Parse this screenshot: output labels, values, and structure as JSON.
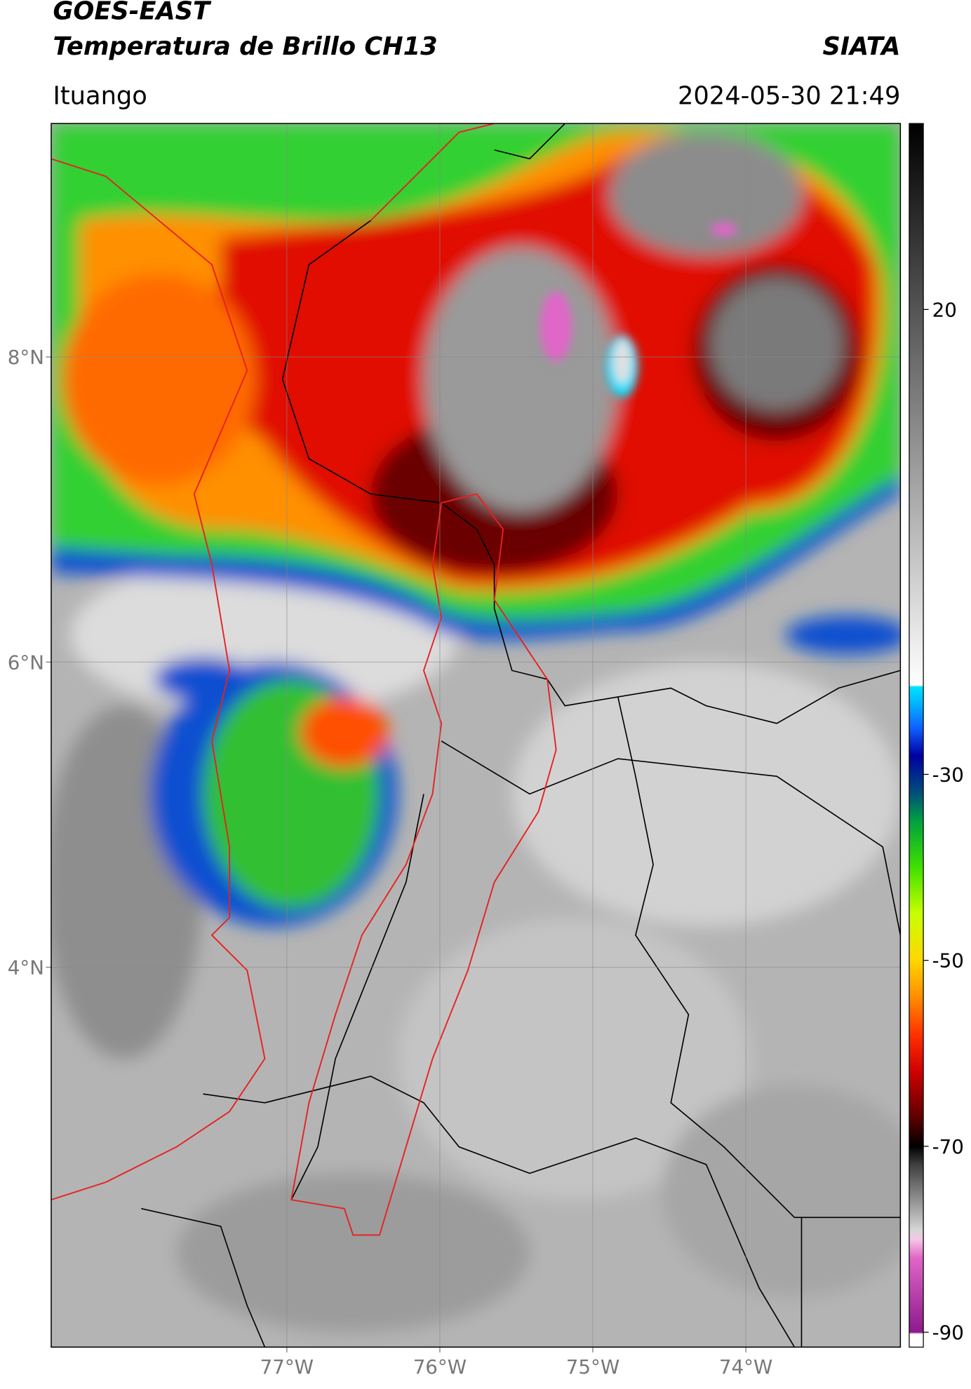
{
  "header": {
    "title_line1": "GOES-EAST",
    "title_line2": "Temperatura de Brillo CH13",
    "agency": "SIATA",
    "region": "Ituango",
    "datetime": "2024-05-30 21:49"
  },
  "map": {
    "xlim": [
      -78.54,
      -72.99
    ],
    "ylim": [
      1.51,
      9.53
    ],
    "xticks": [
      {
        "value": -77,
        "label": "77°W"
      },
      {
        "value": -76,
        "label": "76°W"
      },
      {
        "value": -75,
        "label": "75°W"
      },
      {
        "value": -74,
        "label": "74°W"
      }
    ],
    "yticks": [
      {
        "value": 8,
        "label": "8°N"
      },
      {
        "value": 6,
        "label": "6°N"
      },
      {
        "value": 4,
        "label": "4°N"
      }
    ],
    "grid": true
  },
  "colorbar": {
    "lim": [
      -91.6,
      40
    ],
    "ticks": [
      20,
      -30,
      -50,
      -70,
      -90
    ],
    "colormap": [
      {
        "value": -91.6,
        "color": "#ffffff"
      },
      {
        "value": -90.2,
        "color": "#ffffff"
      },
      {
        "value": -90,
        "color": "#8b1a8b"
      },
      {
        "value": -82,
        "color": "#e066c8"
      },
      {
        "value": -80,
        "color": "#f4c8e6"
      },
      {
        "value": -79,
        "color": "#d6d6d6"
      },
      {
        "value": -72,
        "color": "#404040"
      },
      {
        "value": -70,
        "color": "#000000"
      },
      {
        "value": -67,
        "color": "#5a0000"
      },
      {
        "value": -62,
        "color": "#d00000"
      },
      {
        "value": -58,
        "color": "#ff3000"
      },
      {
        "value": -54,
        "color": "#ff8c00"
      },
      {
        "value": -50,
        "color": "#ffd700"
      },
      {
        "value": -45,
        "color": "#c8ff00"
      },
      {
        "value": -40,
        "color": "#40e000"
      },
      {
        "value": -35,
        "color": "#00a040"
      },
      {
        "value": -32,
        "color": "#00507a"
      },
      {
        "value": -28,
        "color": "#0000a0"
      },
      {
        "value": -25,
        "color": "#1060ff"
      },
      {
        "value": -22,
        "color": "#00c0ff"
      },
      {
        "value": -20.6,
        "color": "#00e0ff"
      },
      {
        "value": -20.4,
        "color": "#ffffff"
      },
      {
        "value": 40,
        "color": "#000000"
      }
    ]
  }
}
